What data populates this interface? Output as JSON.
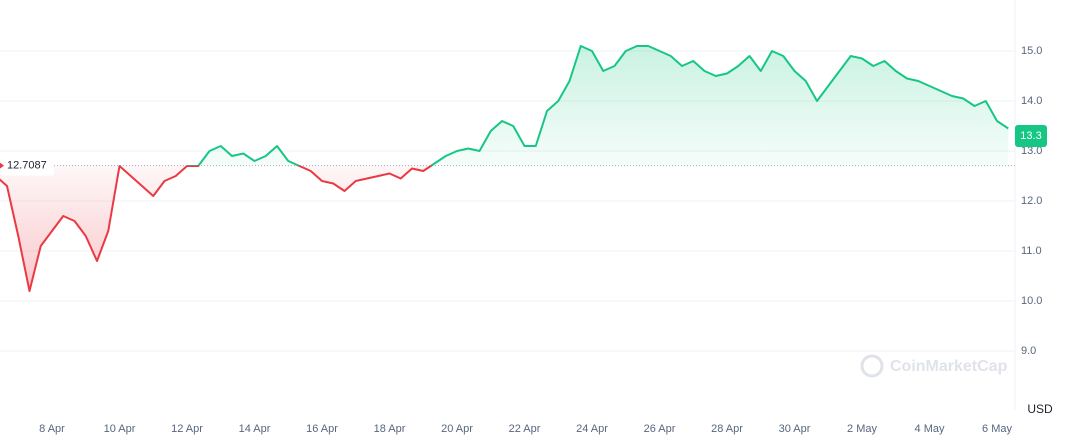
{
  "chart_data": {
    "type": "line",
    "categories": [
      null,
      null,
      null,
      null,
      null,
      "8 Apr",
      null,
      null,
      null,
      null,
      null,
      "10 Apr",
      null,
      null,
      null,
      null,
      null,
      "12 Apr",
      null,
      null,
      null,
      null,
      null,
      "14 Apr",
      null,
      null,
      null,
      null,
      null,
      "16 Apr",
      null,
      null,
      null,
      null,
      null,
      "18 Apr",
      null,
      null,
      null,
      null,
      null,
      "20 Apr",
      null,
      null,
      null,
      null,
      null,
      "22 Apr",
      null,
      null,
      null,
      null,
      null,
      "24 Apr",
      null,
      null,
      null,
      null,
      null,
      "26 Apr",
      null,
      null,
      null,
      null,
      null,
      "28 Apr",
      null,
      null,
      null,
      null,
      null,
      "30 Apr",
      null,
      null,
      null,
      null,
      null,
      "2 May",
      null,
      null,
      null,
      null,
      null,
      "4 May",
      null,
      null,
      null,
      null,
      null,
      "6 May",
      null
    ],
    "values": [
      12.5,
      12.3,
      11.3,
      10.2,
      11.1,
      11.4,
      11.7,
      11.6,
      11.3,
      10.8,
      11.4,
      12.7,
      12.5,
      12.3,
      12.1,
      12.4,
      12.5,
      12.7,
      12.7,
      13.0,
      13.1,
      12.9,
      12.95,
      12.8,
      12.9,
      13.1,
      12.8,
      12.7,
      12.6,
      12.4,
      12.35,
      12.2,
      12.4,
      12.45,
      12.5,
      12.55,
      12.45,
      12.65,
      12.6,
      12.75,
      12.9,
      13.0,
      13.05,
      13.0,
      13.4,
      13.6,
      13.5,
      13.1,
      13.1,
      13.8,
      14.0,
      14.4,
      15.1,
      15.0,
      14.6,
      14.7,
      15.0,
      15.1,
      15.1,
      15.0,
      14.9,
      14.7,
      14.8,
      14.6,
      14.5,
      14.55,
      14.7,
      14.9,
      14.6,
      15.0,
      14.9,
      14.6,
      14.4,
      14.0,
      14.3,
      14.6,
      14.9,
      14.85,
      14.7,
      14.8,
      14.6,
      14.45,
      14.4,
      14.3,
      14.2,
      14.1,
      14.05,
      13.9,
      14.0,
      13.6,
      13.45
    ],
    "baseline": 12.7087,
    "current_price": 13.3,
    "above_color": "#16c784",
    "below_color": "#ea3943",
    "ylim": [
      8,
      16
    ],
    "yticks": [
      {
        "value": 9,
        "label": "9.0"
      },
      {
        "value": 10,
        "label": "10.0"
      },
      {
        "value": 11,
        "label": "11.0"
      },
      {
        "value": 12,
        "label": "12.0"
      },
      {
        "value": 13,
        "label": "13.0"
      },
      {
        "value": 14,
        "label": "14.0"
      },
      {
        "value": 15,
        "label": "15.0"
      }
    ],
    "grid": true,
    "currency": "USD",
    "watermark": "CoinMarketCap"
  }
}
